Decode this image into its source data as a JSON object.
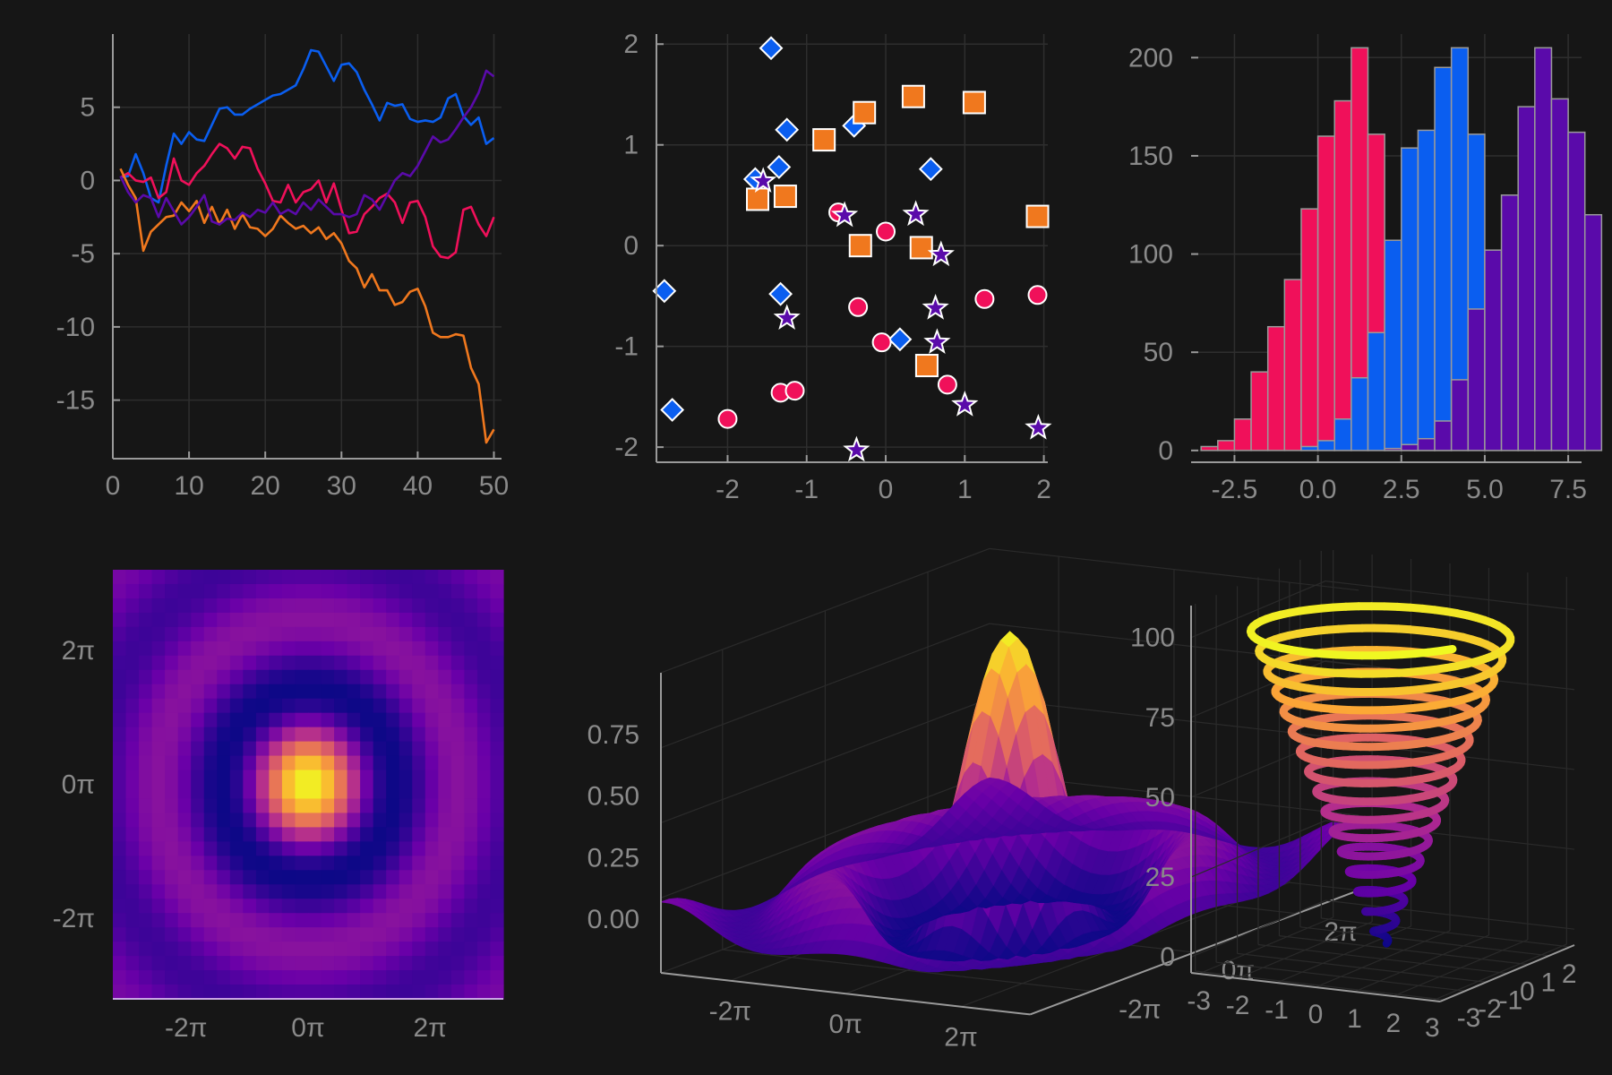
{
  "background": "#161616",
  "colors": {
    "blue": "#0a5ef0",
    "crimson": "#f0105a",
    "orange": "#f0781e",
    "purple": "#5a0aaa",
    "tick": "#8a8a8a",
    "axis": "#9a9a9a"
  },
  "chart_data": [
    {
      "type": "line",
      "x": [
        1,
        2,
        3,
        4,
        5,
        6,
        7,
        8,
        9,
        10,
        11,
        12,
        13,
        14,
        15,
        16,
        17,
        18,
        19,
        20,
        21,
        22,
        23,
        24,
        25,
        26,
        27,
        28,
        29,
        30,
        31,
        32,
        33,
        34,
        35,
        36,
        37,
        38,
        39,
        40,
        41,
        42,
        43,
        44,
        45,
        46,
        47,
        48,
        49,
        50
      ],
      "series": [
        {
          "color": "#0a5ef0",
          "values": [
            0.2,
            0.3,
            1.8,
            0.5,
            -1.2,
            -1.5,
            1.0,
            3.2,
            2.5,
            3.3,
            2.8,
            2.7,
            3.8,
            4.9,
            5.0,
            4.5,
            4.5,
            4.9,
            5.2,
            5.5,
            5.8,
            5.9,
            6.2,
            6.5,
            7.6,
            8.9,
            8.8,
            7.8,
            6.8,
            7.9,
            8.0,
            7.4,
            6.2,
            5.2,
            4.1,
            5.3,
            5.1,
            5.2,
            4.2,
            4.0,
            4.1,
            4.0,
            4.3,
            5.6,
            5.9,
            4.4,
            3.8,
            4.3,
            2.5,
            2.9
          ]
        },
        {
          "color": "#f0105a",
          "values": [
            0.2,
            0.5,
            0.0,
            -0.1,
            0.2,
            -1.2,
            -0.8,
            1.5,
            0.0,
            -0.3,
            0.5,
            1.0,
            1.8,
            2.5,
            2.2,
            1.5,
            2.3,
            2.2,
            0.8,
            -0.2,
            -1.4,
            -1.5,
            -0.3,
            -1.5,
            -0.8,
            -0.6,
            0.0,
            -1.5,
            -0.2,
            -2.0,
            -3.6,
            -3.5,
            -2.3,
            -1.8,
            -1.2,
            -0.9,
            -1.5,
            -2.9,
            -1.5,
            -1.4,
            -2.5,
            -4.5,
            -5.2,
            -5.3,
            -4.9,
            -2.0,
            -1.8,
            -3.0,
            -3.8,
            -2.5
          ]
        },
        {
          "color": "#f0781e",
          "values": [
            0.8,
            -0.3,
            -1.2,
            -4.8,
            -3.5,
            -3.0,
            -2.5,
            -2.4,
            -1.5,
            -2.1,
            -1.4,
            -2.9,
            -1.8,
            -3.0,
            -2.0,
            -3.3,
            -2.3,
            -3.2,
            -3.3,
            -3.8,
            -3.3,
            -2.4,
            -2.9,
            -3.3,
            -3.1,
            -3.6,
            -3.2,
            -4.0,
            -3.6,
            -4.3,
            -5.5,
            -6.0,
            -7.3,
            -6.4,
            -7.5,
            -7.5,
            -8.5,
            -8.3,
            -7.6,
            -7.4,
            -8.6,
            -10.4,
            -10.7,
            -10.7,
            -10.5,
            -10.6,
            -12.8,
            -13.9,
            -17.9,
            -17.0
          ]
        },
        {
          "color": "#5a0aaa",
          "values": [
            0.3,
            -0.8,
            -1.5,
            -1.0,
            -1.2,
            -2.5,
            -1.2,
            -2.1,
            -3.0,
            -2.5,
            -1.8,
            -1.0,
            -2.8,
            -3.0,
            -2.6,
            -2.7,
            -2.2,
            -2.5,
            -2.0,
            -2.2,
            -1.5,
            -2.3,
            -2.0,
            -2.3,
            -1.5,
            -2.0,
            -1.3,
            -1.8,
            -2.3,
            -2.3,
            -2.5,
            -2.3,
            -1.0,
            -1.3,
            -2.0,
            -1.0,
            0.0,
            0.5,
            0.3,
            1.0,
            2.0,
            3.0,
            2.6,
            2.8,
            3.5,
            4.3,
            5.0,
            6.0,
            7.5,
            7.1
          ]
        }
      ],
      "xticks": [
        "0",
        "10",
        "20",
        "30",
        "40",
        "50"
      ],
      "yticks": [
        "5",
        "0",
        "-5",
        "-10",
        "-15"
      ],
      "xlim": [
        0,
        51
      ],
      "ylim": [
        -19,
        10
      ],
      "grid": true
    },
    {
      "type": "scatter",
      "series": [
        {
          "marker": "diamond",
          "color": "#0a5ef0",
          "points": [
            [
              -1.45,
              1.96
            ],
            [
              -1.25,
              1.15
            ],
            [
              -0.4,
              1.19
            ],
            [
              0.57,
              0.76
            ],
            [
              -1.35,
              0.78
            ],
            [
              -1.65,
              0.66
            ],
            [
              -2.8,
              -0.45
            ],
            [
              -1.33,
              -0.48
            ],
            [
              0.18,
              -0.93
            ],
            [
              -2.7,
              -1.63
            ]
          ]
        },
        {
          "marker": "square",
          "color": "#f0781e",
          "points": [
            [
              -0.27,
              1.32
            ],
            [
              0.35,
              1.48
            ],
            [
              1.12,
              1.42
            ],
            [
              -0.78,
              1.05
            ],
            [
              -1.62,
              0.46
            ],
            [
              -1.27,
              0.49
            ],
            [
              1.92,
              0.29
            ],
            [
              -0.32,
              0.0
            ],
            [
              0.45,
              -0.02
            ],
            [
              0.52,
              -1.19
            ]
          ]
        },
        {
          "marker": "circle",
          "color": "#f0105a",
          "points": [
            [
              -0.6,
              0.33
            ],
            [
              0.0,
              0.14
            ],
            [
              -0.35,
              -0.61
            ],
            [
              1.25,
              -0.53
            ],
            [
              1.92,
              -0.49
            ],
            [
              -0.05,
              -0.96
            ],
            [
              0.78,
              -1.38
            ],
            [
              -1.33,
              -1.46
            ],
            [
              -1.15,
              -1.44
            ],
            [
              -2.0,
              -1.72
            ]
          ]
        },
        {
          "marker": "star",
          "color": "#5a0aaa",
          "points": [
            [
              -1.55,
              0.64
            ],
            [
              -0.52,
              0.3
            ],
            [
              0.38,
              0.31
            ],
            [
              0.7,
              -0.09
            ],
            [
              0.63,
              -0.62
            ],
            [
              -1.25,
              -0.72
            ],
            [
              0.65,
              -0.96
            ],
            [
              1.0,
              -1.58
            ],
            [
              1.93,
              -1.81
            ],
            [
              -0.37,
              -2.03
            ]
          ]
        }
      ],
      "xticks": [
        "-2",
        "-1",
        "0",
        "1",
        "2"
      ],
      "yticks": [
        "2",
        "1",
        "0",
        "-1",
        "-2"
      ],
      "xlim": [
        -2.9,
        2.05
      ],
      "ylim": [
        -2.15,
        2.1
      ],
      "grid": true
    },
    {
      "type": "bar",
      "bin_width": 0.5,
      "series": [
        {
          "color": "#f0105a",
          "edges_start": -3.5,
          "counts": [
            2,
            5,
            16,
            40,
            63,
            87,
            123,
            160,
            178,
            205,
            161,
            67,
            25,
            7,
            2,
            0,
            0,
            0,
            0,
            0,
            0,
            0,
            0,
            0
          ]
        },
        {
          "color": "#0a5ef0",
          "edges_start": -3.5,
          "counts": [
            0,
            0,
            0,
            0,
            0,
            0,
            2,
            5,
            16,
            37,
            60,
            107,
            154,
            163,
            195,
            205,
            161,
            100,
            63,
            30,
            14,
            4,
            1,
            0
          ]
        },
        {
          "color": "#5a0aaa",
          "edges_start": -3.5,
          "counts": [
            0,
            0,
            0,
            0,
            0,
            0,
            0,
            0,
            0,
            0,
            0,
            1,
            3,
            6,
            15,
            36,
            72,
            102,
            130,
            175,
            205,
            179,
            162,
            120
          ]
        }
      ],
      "xticks": [
        "-2.5",
        "0.0",
        "2.5",
        "5.0",
        "7.5"
      ],
      "yticks": [
        "200",
        "150",
        "100",
        "50",
        "0"
      ],
      "xlim": [
        -3.8,
        7.9
      ],
      "ylim": [
        -6,
        212
      ],
      "grid": true
    },
    {
      "type": "heatmap",
      "nx": 30,
      "ny": 30,
      "range": [
        -10.053,
        10.053
      ],
      "function": "sinc(sqrt(x^2+y^2))",
      "colormap": [
        "#0d0887",
        "#6a00a8",
        "#b12a90",
        "#e16462",
        "#fca636",
        "#f0f921"
      ],
      "xticks": [
        "-2π",
        "0π",
        "2π"
      ],
      "yticks": [
        "2π",
        "0π",
        "-2π"
      ]
    },
    {
      "type": "surface",
      "function": "sinc(sqrt(x^2+y^2))",
      "colormap": [
        "#0d0887",
        "#6a00a8",
        "#b12a90",
        "#e16462",
        "#fca636",
        "#f0f921"
      ],
      "zticks": [
        "0.75",
        "0.50",
        "0.25",
        "0.00"
      ],
      "xticks": [
        "-2π",
        "0π",
        "2π"
      ],
      "yticks": [
        "-2π",
        "0π",
        "2π"
      ]
    },
    {
      "type": "line3d",
      "x": "cos(t)",
      "y": "sin(t)",
      "z": "t",
      "t_range": [
        0,
        100
      ],
      "colormap": [
        "#0d0887",
        "#6a00a8",
        "#b12a90",
        "#e16462",
        "#fca636",
        "#f0f921"
      ],
      "zticks": [
        "100",
        "75",
        "50",
        "25",
        "0"
      ],
      "xticks": [
        "-3",
        "-2",
        "-1",
        "0",
        "1",
        "2",
        "3"
      ],
      "yticks": [
        "-3",
        "-2",
        "-1",
        "0",
        "1",
        "2"
      ]
    }
  ]
}
